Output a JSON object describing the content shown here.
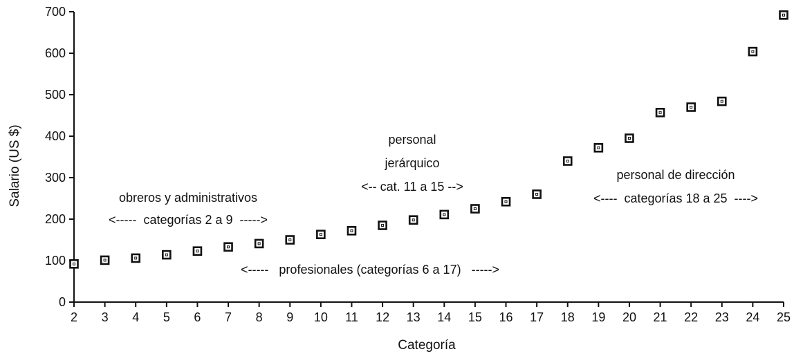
{
  "chart_data": {
    "type": "scatter",
    "xlabel": "Categoría",
    "ylabel": "Salario (US $)",
    "xlim": [
      2,
      25
    ],
    "ylim": [
      0,
      700
    ],
    "x_ticks": [
      2,
      3,
      4,
      5,
      6,
      7,
      8,
      9,
      10,
      11,
      12,
      13,
      14,
      15,
      16,
      17,
      18,
      19,
      20,
      21,
      22,
      23,
      24,
      25
    ],
    "y_ticks": [
      0,
      100,
      200,
      300,
      400,
      500,
      600,
      700
    ],
    "grid": false,
    "series": [
      {
        "x": [
          2,
          3,
          4,
          5,
          6,
          7,
          8,
          9,
          10,
          11,
          12,
          13,
          14,
          15,
          16,
          17,
          18,
          19,
          20,
          21,
          22,
          23,
          24,
          25
        ],
        "y": [
          92,
          101,
          106,
          114,
          123,
          133,
          141,
          150,
          163,
          172,
          185,
          198,
          211,
          225,
          242,
          260,
          340,
          372,
          395,
          457,
          470,
          484,
          604,
          692
        ]
      }
    ],
    "annotations": {
      "obreros_title": "obreros y administrativos",
      "obreros_range": "<-----  categorías 2 a 9  ----->",
      "profesionales": "<-----   profesionales (categorías 6 a 17)   ----->",
      "jerarquico_line1": "personal",
      "jerarquico_line2": "jerárquico",
      "jerarquico_range": "<-- cat. 11 a 15 -->",
      "direccion_title": "personal de dirección",
      "direccion_range": "<----  categorías 18 a 25  ---->"
    },
    "marker": "hollow-square",
    "color": "#111111"
  }
}
